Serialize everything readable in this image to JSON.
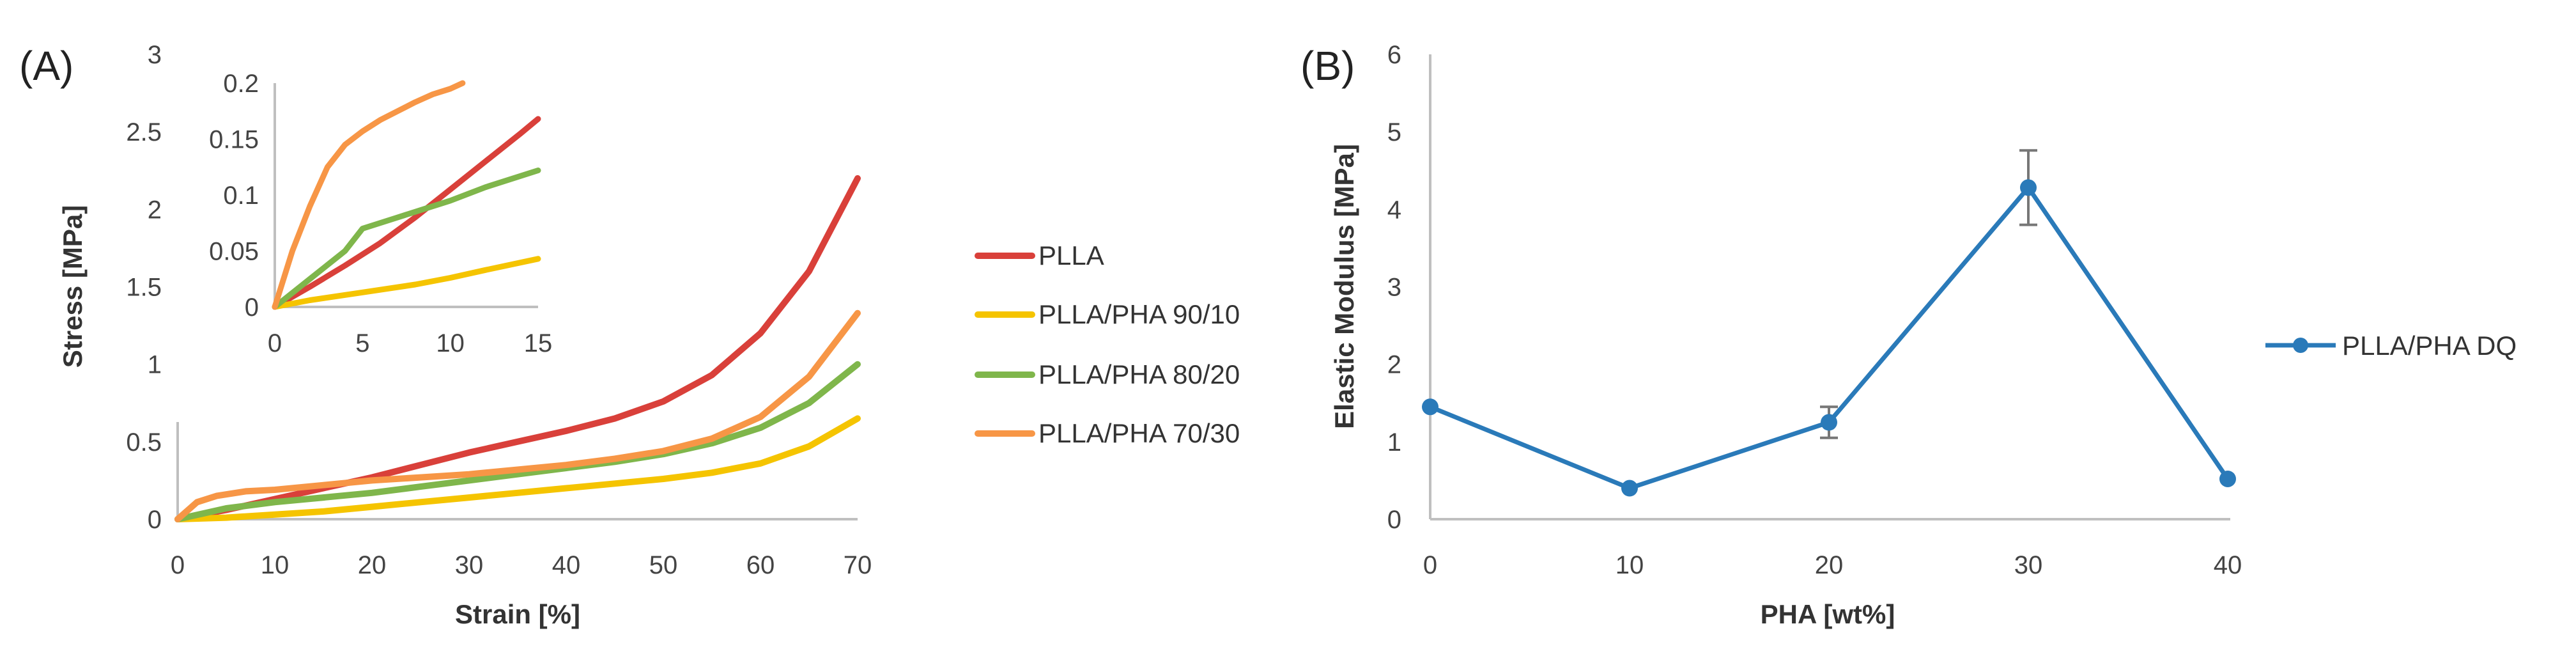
{
  "chart_data": [
    {
      "id": "A",
      "panel_label": "(A)",
      "type": "line",
      "xlabel": "Strain [%]",
      "ylabel": "Stress [MPa]",
      "xlim": [
        0,
        70
      ],
      "ylim": [
        0,
        3
      ],
      "xticks": [
        "0",
        "10",
        "20",
        "30",
        "40",
        "50",
        "60",
        "70"
      ],
      "yticks": [
        "0",
        "0.5",
        "1",
        "1.5",
        "2",
        "2.5",
        "3"
      ],
      "series": [
        {
          "name": "PLLA",
          "color": "#d9403a",
          "x": [
            0,
            5,
            10,
            15,
            20,
            25,
            30,
            35,
            40,
            45,
            50,
            55,
            60,
            65,
            70
          ],
          "y": [
            0,
            0.06,
            0.13,
            0.2,
            0.27,
            0.35,
            0.43,
            0.5,
            0.57,
            0.65,
            0.76,
            0.93,
            1.2,
            1.6,
            2.2
          ]
        },
        {
          "name": "PLLA/PHA 90/10",
          "color": "#f5c400",
          "x": [
            0,
            5,
            10,
            15,
            20,
            25,
            30,
            35,
            40,
            45,
            50,
            55,
            60,
            65,
            70
          ],
          "y": [
            0,
            0.01,
            0.03,
            0.05,
            0.08,
            0.11,
            0.14,
            0.17,
            0.2,
            0.23,
            0.26,
            0.3,
            0.36,
            0.47,
            0.65
          ]
        },
        {
          "name": "PLLA/PHA 80/20",
          "color": "#7fb64b",
          "x": [
            0,
            5,
            10,
            15,
            20,
            25,
            30,
            35,
            40,
            45,
            50,
            55,
            60,
            65,
            70
          ],
          "y": [
            0,
            0.07,
            0.11,
            0.14,
            0.17,
            0.21,
            0.25,
            0.29,
            0.33,
            0.37,
            0.42,
            0.49,
            0.59,
            0.75,
            1.0
          ]
        },
        {
          "name": "PLLA/PHA 70/30",
          "color": "#f79646",
          "x": [
            0,
            2,
            4,
            7,
            10,
            15,
            20,
            25,
            30,
            35,
            40,
            45,
            50,
            55,
            60,
            65,
            70
          ],
          "y": [
            0,
            0.11,
            0.15,
            0.18,
            0.19,
            0.22,
            0.25,
            0.27,
            0.29,
            0.32,
            0.35,
            0.39,
            0.44,
            0.52,
            0.66,
            0.92,
            1.33
          ]
        }
      ]
    },
    {
      "id": "A-inset",
      "type": "line",
      "xlim": [
        0,
        15
      ],
      "ylim": [
        0,
        0.2
      ],
      "xticks": [
        "0",
        "5",
        "10",
        "15"
      ],
      "yticks": [
        "0",
        "0.05",
        "0.1",
        "0.15",
        "0.2"
      ],
      "series": [
        {
          "name": "PLLA",
          "color": "#d9403a",
          "x": [
            0,
            2,
            4,
            6,
            8,
            10,
            12,
            14,
            15
          ],
          "y": [
            0,
            0.018,
            0.037,
            0.057,
            0.08,
            0.105,
            0.13,
            0.155,
            0.168
          ]
        },
        {
          "name": "PLLA/PHA 90/10",
          "color": "#f5c400",
          "x": [
            0,
            2,
            5,
            8,
            10,
            12,
            15
          ],
          "y": [
            0,
            0.006,
            0.013,
            0.02,
            0.026,
            0.033,
            0.043
          ]
        },
        {
          "name": "PLLA/PHA 80/20",
          "color": "#7fb64b",
          "x": [
            0,
            2,
            4,
            5,
            7,
            10,
            12,
            15
          ],
          "y": [
            0,
            0.025,
            0.05,
            0.07,
            0.08,
            0.095,
            0.107,
            0.122
          ]
        },
        {
          "name": "PLLA/PHA 70/30",
          "color": "#f79646",
          "x": [
            0,
            1,
            2,
            3,
            4,
            5,
            6,
            7,
            8,
            9,
            10,
            10.7
          ],
          "y": [
            0,
            0.05,
            0.09,
            0.125,
            0.145,
            0.157,
            0.167,
            0.175,
            0.183,
            0.19,
            0.195,
            0.2
          ]
        }
      ]
    },
    {
      "id": "B",
      "panel_label": "(B)",
      "type": "line",
      "xlabel": "PHA [wt%]",
      "ylabel": "Elastic Modulus [MPa]",
      "xlim": [
        0,
        40
      ],
      "ylim": [
        0,
        6
      ],
      "xticks": [
        "0",
        "10",
        "20",
        "30",
        "40"
      ],
      "yticks": [
        "0",
        "1",
        "2",
        "3",
        "4",
        "5",
        "6"
      ],
      "series": [
        {
          "name": "PLLA/PHA DQ",
          "color": "#2a7ab9",
          "x": [
            0,
            10,
            20,
            30,
            40
          ],
          "y": [
            1.45,
            0.4,
            1.25,
            4.28,
            0.52
          ],
          "error": [
            0,
            0,
            0.2,
            0.48,
            0
          ]
        }
      ]
    }
  ],
  "legend_a": {
    "items": [
      {
        "label": "PLLA",
        "color": "#d9403a"
      },
      {
        "label": "PLLA/PHA 90/10",
        "color": "#f5c400"
      },
      {
        "label": "PLLA/PHA 80/20",
        "color": "#7fb64b"
      },
      {
        "label": "PLLA/PHA 70/30",
        "color": "#f79646"
      }
    ]
  },
  "legend_b": {
    "label": "PLLA/PHA DQ",
    "color": "#2a7ab9"
  }
}
